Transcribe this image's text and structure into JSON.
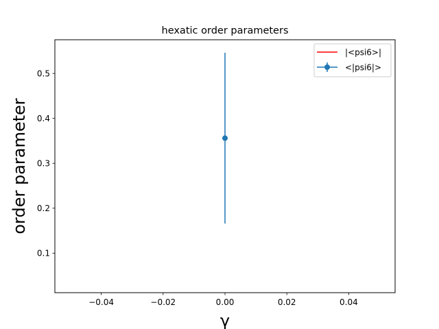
{
  "chart_data": {
    "type": "scatter",
    "title": "hexatic order parameters",
    "xlabel": "γ",
    "ylabel": "order parameter",
    "xlim": [
      -0.055,
      0.055
    ],
    "ylim": [
      0.012,
      0.575
    ],
    "xticks": [
      -0.04,
      -0.02,
      0.0,
      0.02,
      0.04
    ],
    "xtick_labels": [
      "−0.04",
      "−0.02",
      "0.00",
      "0.02",
      "0.04"
    ],
    "yticks": [
      0.1,
      0.2,
      0.3,
      0.4,
      0.5
    ],
    "ytick_labels": [
      "0.1",
      "0.2",
      "0.3",
      "0.4",
      "0.5"
    ],
    "grid": false,
    "legend_position": "top-right",
    "series": [
      {
        "name": "|<psi6>|",
        "kind": "line",
        "color": "#ff0000",
        "x": [],
        "y": []
      },
      {
        "name": "<|psi6|>",
        "kind": "errorbar",
        "color": "#1f77b4",
        "x": [
          0.0
        ],
        "y": [
          0.356
        ],
        "yerr": [
          0.19
        ]
      }
    ]
  }
}
